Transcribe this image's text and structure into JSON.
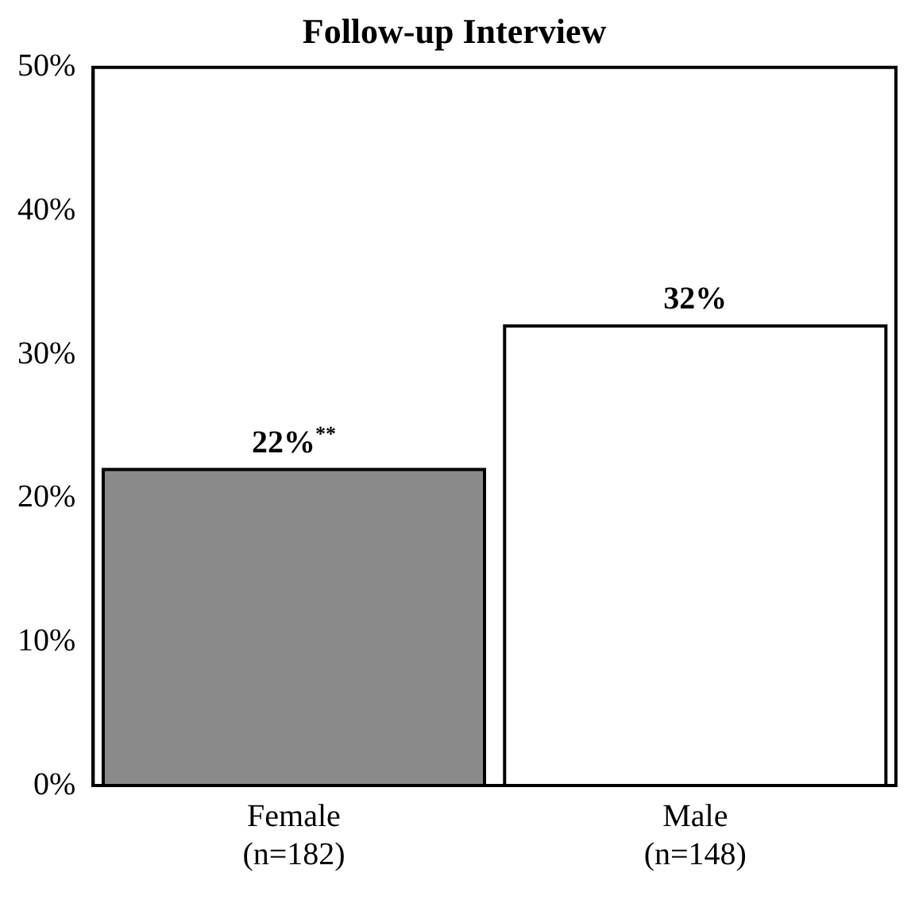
{
  "chart_data": {
    "type": "bar",
    "title": "Follow-up Interview",
    "categories": [
      "Female (n=182)",
      "Male (n=148)"
    ],
    "values": [
      22,
      32
    ],
    "colors": [
      "#8a8a8a",
      "#ffffff"
    ],
    "value_labels": [
      "22%$^{**}$",
      "32%"
    ],
    "ylim": [
      0,
      50
    ],
    "yticks": [
      {
        "value": 0,
        "label": "0%"
      },
      {
        "value": 10,
        "label": "10%"
      },
      {
        "value": 20,
        "label": "20%"
      },
      {
        "value": 30,
        "label": "30%"
      },
      {
        "value": 40,
        "label": "40%"
      },
      {
        "value": 50,
        "label": "50%"
      }
    ],
    "grid": false,
    "legend": false
  }
}
